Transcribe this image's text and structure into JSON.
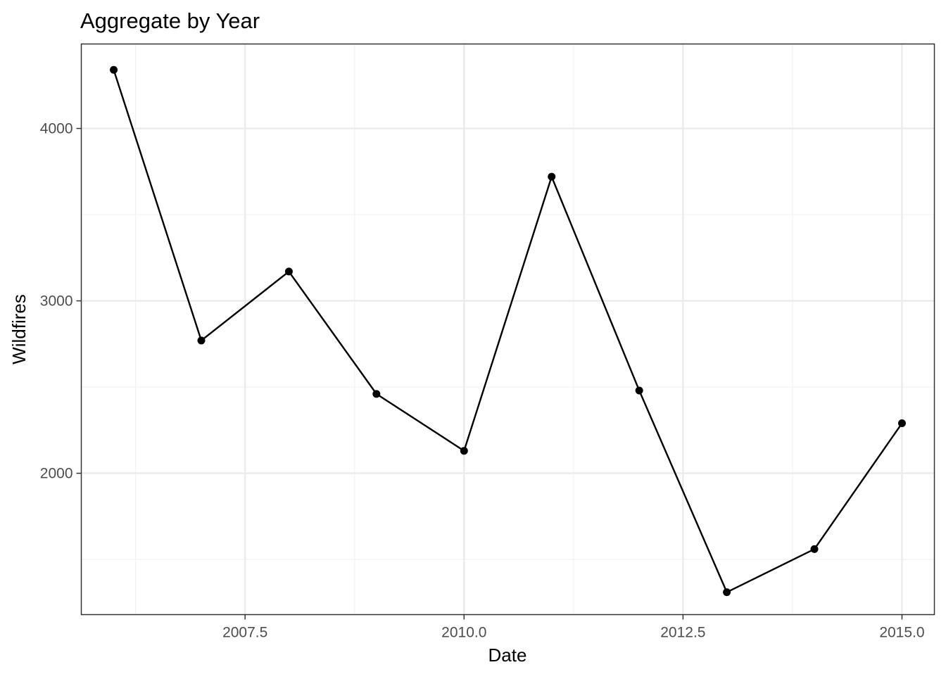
{
  "chart_data": {
    "type": "line",
    "title": "Aggregate by Year",
    "xlabel": "Date",
    "ylabel": "Wildfires",
    "x": [
      2006,
      2007,
      2008,
      2009,
      2010,
      2011,
      2012,
      2013,
      2014,
      2015
    ],
    "series": [
      {
        "values": [
          4340,
          2770,
          3170,
          2460,
          2130,
          3720,
          2480,
          1310,
          1560,
          2290
        ]
      }
    ],
    "xlim": [
      2005.63,
      2015.37
    ],
    "ylim": [
      1180,
      4490
    ],
    "x_ticks": [
      {
        "value": 2007.5,
        "label": "2007.5"
      },
      {
        "value": 2010.0,
        "label": "2010.0"
      },
      {
        "value": 2012.5,
        "label": "2012.5"
      },
      {
        "value": 2015.0,
        "label": "2015.0"
      }
    ],
    "x_minor_ticks": [
      2006.25,
      2008.75,
      2011.25,
      2013.75
    ],
    "y_ticks": [
      {
        "value": 2000,
        "label": "2000"
      },
      {
        "value": 3000,
        "label": "3000"
      },
      {
        "value": 4000,
        "label": "4000"
      }
    ],
    "y_minor_ticks": [
      1500,
      2500,
      3500
    ],
    "grid": true,
    "legend": "none",
    "colors": {
      "line": "#000000",
      "point": "#000000",
      "grid_major": "#ebebeb",
      "grid_minor": "#f2f2f2",
      "panel_border": "#333333",
      "tick_text": "#4d4d4d",
      "title_text": "#000000"
    }
  }
}
